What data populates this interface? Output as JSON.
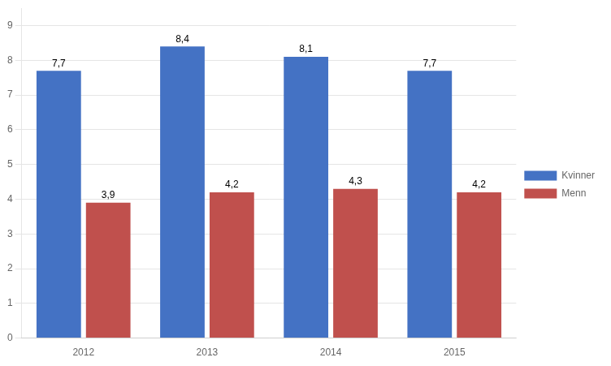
{
  "chart_data": {
    "type": "bar",
    "categories": [
      "2012",
      "2013",
      "2014",
      "2015"
    ],
    "series": [
      {
        "name": "Kvinner",
        "color": "#4472C4",
        "values": [
          7.7,
          8.4,
          8.1,
          7.7
        ],
        "value_labels": [
          "7,7",
          "8,4",
          "8,1",
          "7,7"
        ]
      },
      {
        "name": "Menn",
        "color": "#C0504D",
        "values": [
          3.9,
          4.2,
          4.3,
          4.2
        ],
        "value_labels": [
          "3,9",
          "4,2",
          "4,3",
          "4,2"
        ]
      }
    ],
    "ylim": [
      0,
      9.5
    ],
    "yticks": [
      0,
      1,
      2,
      3,
      4,
      5,
      6,
      7,
      8,
      9
    ],
    "grid": true,
    "legend": "right",
    "data_labels": true
  }
}
